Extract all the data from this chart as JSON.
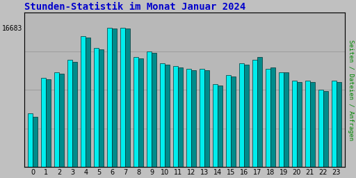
{
  "title": "Stunden-Statistik im Monat Januar 2024",
  "title_color": "#0000CC",
  "ylabel_right": "Seiten / Dateien / Anfragen",
  "ylabel_right_color": "#008800",
  "categories": [
    0,
    1,
    2,
    3,
    4,
    5,
    6,
    7,
    8,
    9,
    10,
    11,
    12,
    13,
    14,
    15,
    16,
    17,
    18,
    19,
    20,
    21,
    22,
    23
  ],
  "values1": [
    13800,
    15000,
    15200,
    15600,
    16400,
    16000,
    16683,
    16683,
    15700,
    15900,
    15500,
    15400,
    15300,
    15300,
    14800,
    15100,
    15500,
    15600,
    15300,
    15200,
    14900,
    14900,
    14600,
    14900
  ],
  "values2": [
    13700,
    14950,
    15150,
    15550,
    16350,
    15950,
    16650,
    16650,
    15650,
    15850,
    15450,
    15350,
    15250,
    15250,
    14750,
    15050,
    15450,
    15700,
    15350,
    15200,
    14850,
    14850,
    14550,
    14850
  ],
  "bar_color1": "#00EEEE",
  "bar_color2": "#008B8B",
  "bar_edge_color": "#003333",
  "background_color": "#C0C0C0",
  "plot_bg_color": "#B8B8B8",
  "grid_color": "#A0A0A0",
  "ytick_label": "16683",
  "ylim_min": 12000,
  "ylim_max": 17200,
  "bar_width": 0.38,
  "title_fontsize": 10,
  "tick_fontsize": 7
}
